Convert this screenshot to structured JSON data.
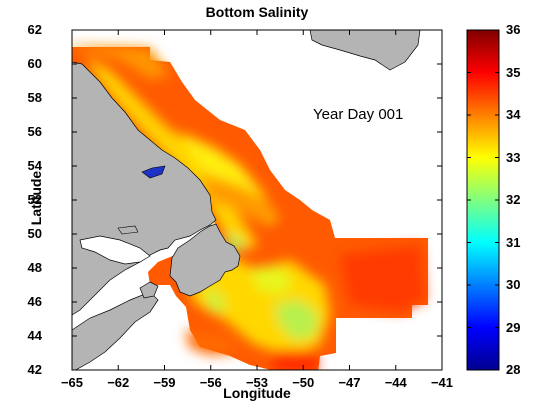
{
  "chart_data": {
    "type": "heatmap",
    "title": "Bottom Salinity",
    "xlabel": "Longitude",
    "ylabel": "Latitude",
    "annotation": "Year Day 001",
    "xlim": [
      -65,
      -41
    ],
    "ylim": [
      42,
      62
    ],
    "x_ticks": [
      "−65",
      "−62",
      "−59",
      "−56",
      "−53",
      "−50",
      "−47",
      "−44",
      "−41"
    ],
    "y_ticks": [
      "42",
      "44",
      "46",
      "48",
      "50",
      "52",
      "54",
      "56",
      "58",
      "60",
      "62"
    ],
    "colorbar": {
      "range": [
        28,
        36
      ],
      "ticks": [
        "28",
        "29",
        "30",
        "31",
        "32",
        "33",
        "34",
        "35",
        "36"
      ],
      "colormap": "jet"
    },
    "land_color": "#b4b4b4",
    "no_data_color": "#ffffff"
  }
}
